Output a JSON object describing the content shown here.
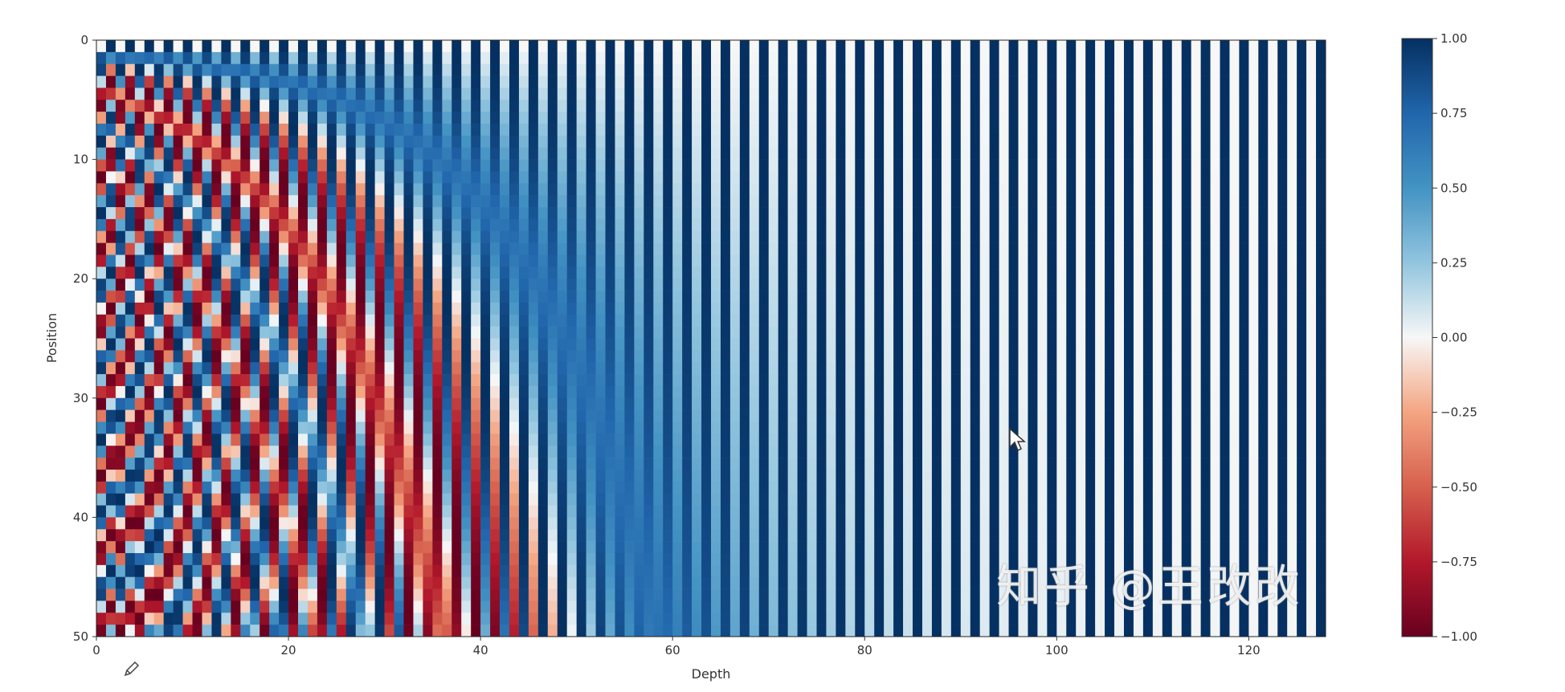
{
  "chart_data": {
    "type": "heatmap",
    "encoding": "sinusoidal positional encoding",
    "rows": 50,
    "columns": 128,
    "base": 10000,
    "xlabel": "Depth",
    "ylabel": "Position",
    "xlim": [
      0,
      128
    ],
    "ylim": [
      50,
      0
    ],
    "xticks": [
      "0",
      "20",
      "40",
      "60",
      "80",
      "100",
      "120"
    ],
    "yticks": [
      "0",
      "10",
      "20",
      "30",
      "40",
      "50"
    ],
    "colormap": "RdBu",
    "colorbar": {
      "range": [
        -1,
        1
      ],
      "ticks": [
        "1.00",
        "0.75",
        "0.50",
        "0.25",
        "0.00",
        "−0.25",
        "−0.50",
        "−0.75",
        "−1.00"
      ],
      "colors": {
        "min": "#67001f",
        "neg": "#d6604d",
        "mid": "#f7f7f7",
        "pos": "#4393c3",
        "max": "#053061"
      }
    }
  },
  "watermark": "知乎 @王改改",
  "icons": {
    "cursor": "mouse-pointer-icon",
    "pencil": "pencil-icon"
  }
}
